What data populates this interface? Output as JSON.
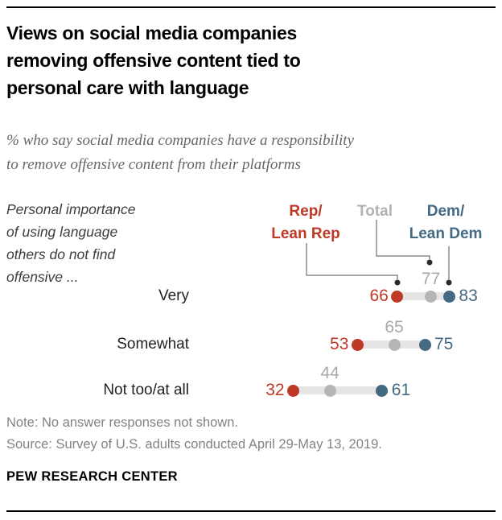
{
  "header": {
    "title_lines": [
      "Views on social media companies",
      "removing offensive content tied to",
      "personal care with language"
    ],
    "subtitle_lines": [
      "% who say social media companies have a responsibility",
      "to remove offensive content from their platforms"
    ]
  },
  "chart": {
    "reading_label_lines": [
      "Personal importance",
      "of using language",
      "others do not find",
      "offensive ..."
    ],
    "legend": {
      "rep": {
        "line1": "Rep/",
        "line2": "Lean Rep",
        "color": "#bf3927"
      },
      "total": {
        "line1": "Total",
        "color": "#b2b2b2"
      },
      "dem": {
        "line1": "Dem/",
        "line2": "Lean Dem",
        "color": "#436983"
      }
    }
  },
  "chart_data": {
    "type": "scatter",
    "subtype": "dot-plot",
    "categories": [
      "Very",
      "Somewhat",
      "Not too/at all"
    ],
    "series": [
      {
        "name": "Rep/Lean Rep",
        "color": "#bf3927",
        "values": [
          66,
          53,
          32
        ]
      },
      {
        "name": "Total",
        "color": "#b5b5b5",
        "values": [
          77,
          65,
          44
        ]
      },
      {
        "name": "Dem/Lean Dem",
        "color": "#436983",
        "values": [
          83,
          75,
          61
        ]
      }
    ],
    "value_labels_shown": true,
    "xlim": [
      0,
      100
    ],
    "grid": false,
    "legend_position": "top",
    "connector_color": "#e6e5e3",
    "title": "Views on social media companies removing offensive content tied to personal care with language",
    "xlabel": "",
    "ylabel": "Personal importance of using language others do not find offensive ..."
  },
  "footer": {
    "note": "Note: No answer responses not shown.",
    "source": "Source: Survey of U.S. adults conducted April 29-May 13, 2019.",
    "brand": "PEW RESEARCH CENTER"
  }
}
